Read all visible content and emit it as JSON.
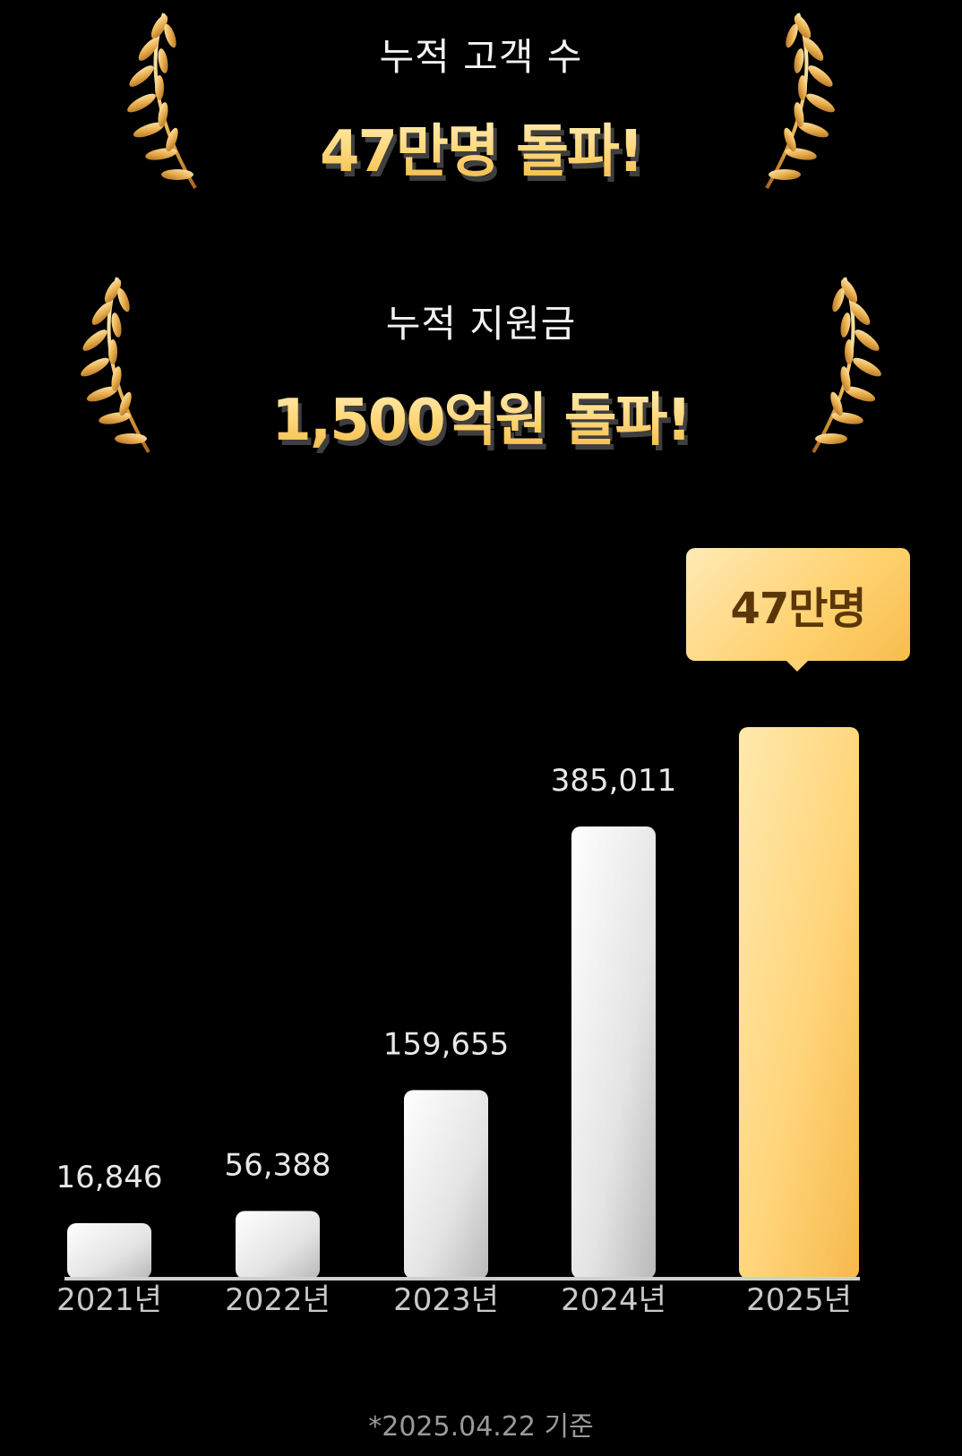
{
  "stats": [
    {
      "label": "누적 고객 수",
      "headline": "47만명 돌파!"
    },
    {
      "label": "누적 지원금",
      "headline": "1,500억원 돌파!"
    }
  ],
  "icons": {
    "wreath": "laurel-wreath-icon"
  },
  "chart_data": {
    "type": "bar",
    "categories": [
      "2021년",
      "2022년",
      "2023년",
      "2024년",
      "2025년"
    ],
    "values": [
      16846,
      56388,
      159655,
      385011,
      470000
    ],
    "data_labels": [
      "16,846",
      "56,388",
      "159,655",
      "385,011",
      ""
    ],
    "highlight": {
      "index": 4,
      "label": "47만명"
    },
    "title": "",
    "xlabel": "",
    "ylabel": "",
    "ylim": [
      0,
      470000
    ],
    "grid": false,
    "legend": "none"
  },
  "colors": {
    "highlight_bar": "#ffc957",
    "normal_bar": "#e6e6e6",
    "highlight_text": "#5a3608",
    "background": "#000000"
  },
  "footnote": "*2025.04.22 기준"
}
